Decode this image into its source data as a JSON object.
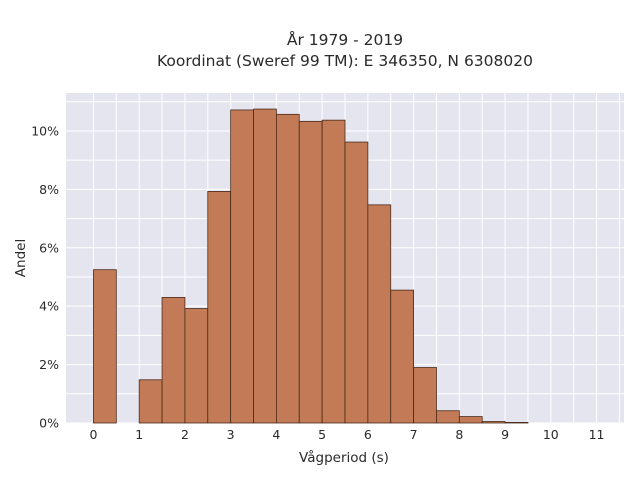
{
  "chart_data": {
    "type": "bar",
    "title_line1": "År 1979 - 2019",
    "title_line2": "Koordinat (Sweref 99 TM): E 346350, N 6308020",
    "xlabel": "Vågperiod (s)",
    "ylabel": "Andel",
    "x_ticks": [
      "0",
      "1",
      "2",
      "3",
      "4",
      "5",
      "6",
      "7",
      "8",
      "9",
      "10",
      "11"
    ],
    "y_ticks": [
      "0%",
      "2%",
      "4%",
      "6%",
      "8%",
      "10%"
    ],
    "xlim": [
      -0.6,
      11.6
    ],
    "ylim": [
      0,
      11.3
    ],
    "bin_width": 0.5,
    "bins": [
      {
        "x": 0.0,
        "value": 5.25
      },
      {
        "x": 1.0,
        "value": 1.48
      },
      {
        "x": 1.5,
        "value": 4.3
      },
      {
        "x": 2.0,
        "value": 3.92
      },
      {
        "x": 2.5,
        "value": 7.93
      },
      {
        "x": 3.0,
        "value": 10.72
      },
      {
        "x": 3.5,
        "value": 10.75
      },
      {
        "x": 4.0,
        "value": 10.57
      },
      {
        "x": 4.5,
        "value": 10.33
      },
      {
        "x": 5.0,
        "value": 10.37
      },
      {
        "x": 5.5,
        "value": 9.62
      },
      {
        "x": 6.0,
        "value": 7.47
      },
      {
        "x": 6.5,
        "value": 4.55
      },
      {
        "x": 7.0,
        "value": 1.9
      },
      {
        "x": 7.5,
        "value": 0.42
      },
      {
        "x": 8.0,
        "value": 0.22
      },
      {
        "x": 8.5,
        "value": 0.05
      },
      {
        "x": 9.0,
        "value": 0.02
      }
    ],
    "colors": {
      "bar": "#c27b56",
      "bar_edge": "#4a2a1a",
      "plot_bg": "#e5e5f0",
      "grid": "#ffffff"
    },
    "grid": true
  }
}
